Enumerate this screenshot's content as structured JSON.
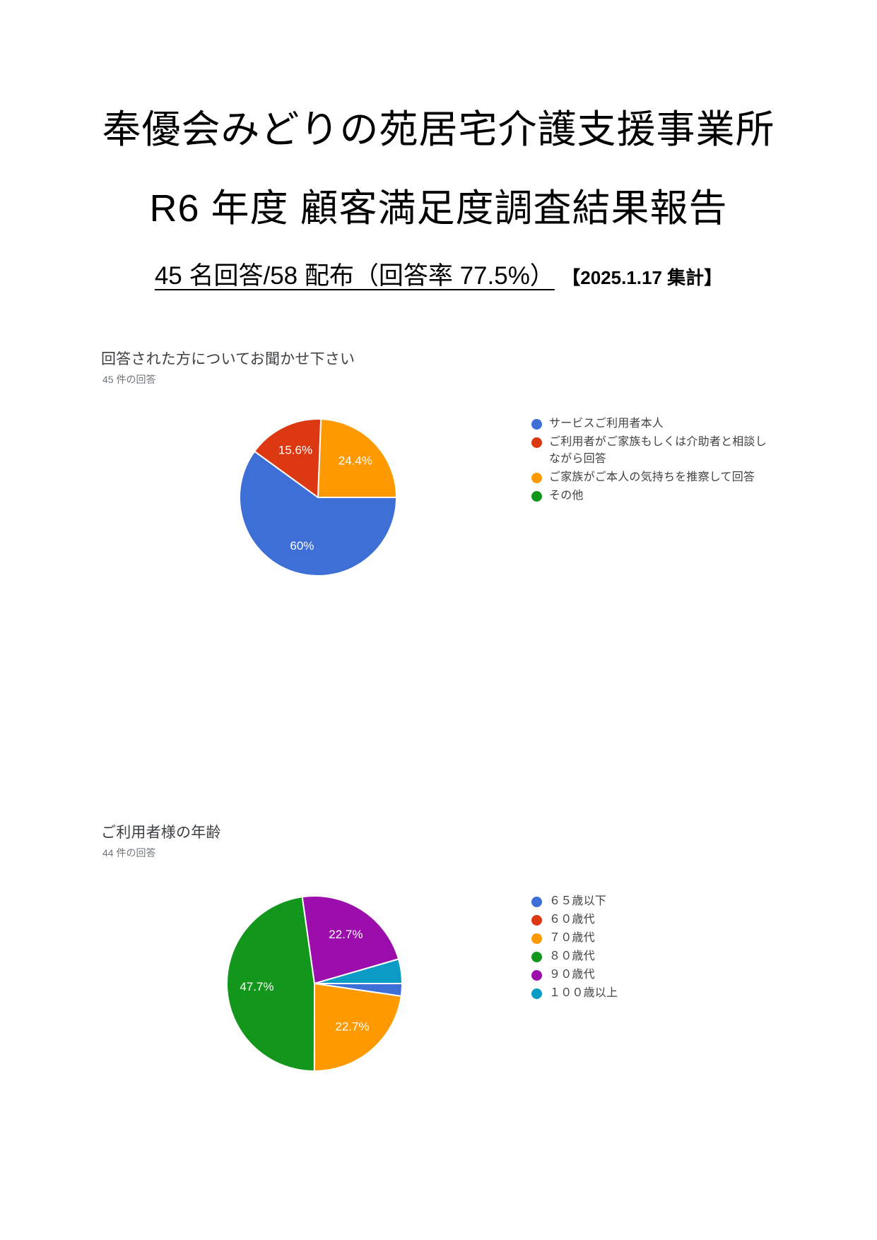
{
  "document": {
    "title_line1": "奉優会みどりの苑居宅介護支援事業所",
    "title_line2": "R6 年度  顧客満足度調査結果報告",
    "subtitle_underlined": "45 名回答/58 配布（回答率 77.5%）",
    "subtitle_note": "【2025.1.17 集計】"
  },
  "chart_data": [
    {
      "type": "pie",
      "title": "回答された方についてお聞かせ下さい",
      "subtitle": "45 件の回答",
      "labels": [
        "サービスご利用者本人",
        "ご利用者がご家族もしくは介助者と相談しながら回答",
        "ご家族がご本人の気持ちを推察して回答",
        "その他"
      ],
      "values": [
        60,
        15.6,
        24.4,
        0
      ],
      "pct_labels": [
        "60%",
        "15.6%",
        "24.4%",
        ""
      ],
      "colors": [
        "#3E6FD7",
        "#DC3912",
        "#FF9900",
        "#12961B"
      ],
      "legend_position": "right",
      "start_angle_deg": 90,
      "direction": "clockwise"
    },
    {
      "type": "pie",
      "title": "ご利用者様の年齢",
      "subtitle": "44 件の回答",
      "labels": [
        "６５歳以下",
        "６０歳代",
        "７０歳代",
        "８０歳代",
        "９０歳代",
        "１００歳以上"
      ],
      "values": [
        2.3,
        0,
        22.7,
        47.7,
        22.7,
        4.5
      ],
      "pct_labels": [
        "",
        "",
        "22.7%",
        "47.7%",
        "22.7%",
        ""
      ],
      "colors": [
        "#3E6FD7",
        "#DC3912",
        "#FF9900",
        "#12961B",
        "#9C0EAC",
        "#0B9BC4"
      ],
      "legend_position": "right",
      "start_angle_deg": 90,
      "direction": "clockwise"
    }
  ]
}
